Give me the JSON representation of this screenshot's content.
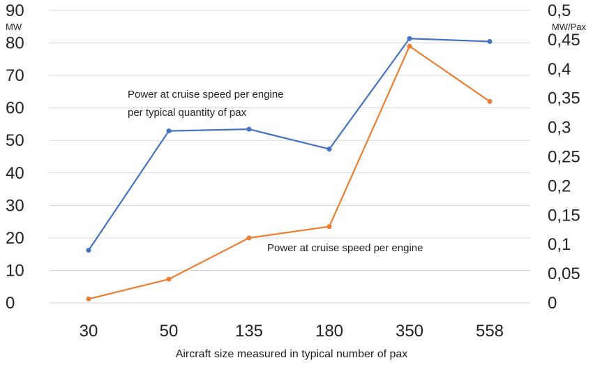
{
  "chart_data": {
    "type": "line",
    "categories": [
      "30",
      "50",
      "135",
      "180",
      "350",
      "558"
    ],
    "xlabel": "Aircraft size measured in typical number of pax",
    "y_left": {
      "unit_label": "MW",
      "ylim": [
        0,
        90
      ],
      "ticks": [
        "0",
        "10",
        "20",
        "30",
        "40",
        "50",
        "60",
        "70",
        "80",
        "90"
      ]
    },
    "y_right": {
      "unit_label": "MW/Pax",
      "ylim": [
        0,
        0.5
      ],
      "ticks": [
        "0",
        "0,05",
        "0,1",
        "0,15",
        "0,2",
        "0,25",
        "0,3",
        "0,35",
        "0,4",
        "0,45",
        "0,5"
      ]
    },
    "grid": true,
    "series": [
      {
        "name": "Power at cruise speed per engine per typical quantity of pax",
        "name_lines": [
          "Power at cruise speed per engine",
          "per typical quantity of pax"
        ],
        "axis": "right",
        "color": "#4472C4",
        "values": [
          0.09,
          0.294,
          0.297,
          0.263,
          0.452,
          0.447
        ]
      },
      {
        "name": "Power at cruise speed per engine",
        "name_lines": [
          "Power at cruise speed per engine"
        ],
        "axis": "left",
        "color": "#ED7D31",
        "values": [
          1.2,
          7.3,
          20.0,
          23.5,
          79.0,
          62.0
        ]
      }
    ]
  }
}
